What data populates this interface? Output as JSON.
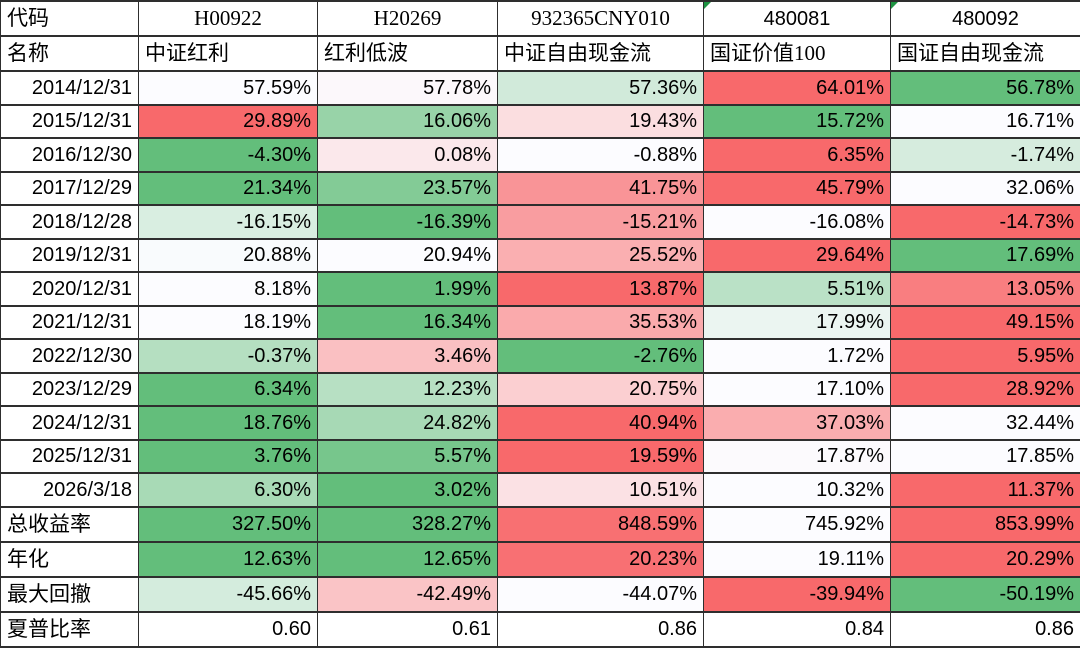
{
  "colors": {
    "border": "#2e2e2e",
    "flag_green": "#1E9442",
    "text": "#000000",
    "background": "#FFFFFF"
  },
  "chart_data": {
    "type": "table",
    "corner": {
      "code_label": "代码",
      "name_label": "名称"
    },
    "column_codes": [
      "H00922",
      "H20269",
      "932365CNY010",
      "480081",
      "480092"
    ],
    "column_names": [
      "中证红利",
      "红利低波",
      "中证自由现金流",
      "国证价值100",
      "国证自由现金流"
    ],
    "code_error_flags": [
      false,
      false,
      false,
      true,
      true
    ],
    "color_scale": {
      "min_color": "#63BE7B",
      "mid_color": "#FCFCFF",
      "max_color": "#F8696B",
      "midpoint": "row median",
      "note": "per-row 3-color scale: lowest=green, median=white, highest=red"
    },
    "rows": [
      {
        "label": "2014/12/31",
        "label_type": "date",
        "format": "percent",
        "color_scale": true,
        "values": [
          57.59,
          57.78,
          57.36,
          64.01,
          56.78
        ]
      },
      {
        "label": "2015/12/31",
        "label_type": "date",
        "format": "percent",
        "color_scale": true,
        "values": [
          29.89,
          16.06,
          19.43,
          15.72,
          16.71
        ]
      },
      {
        "label": "2016/12/30",
        "label_type": "date",
        "format": "percent",
        "color_scale": true,
        "values": [
          -4.3,
          0.08,
          -0.88,
          6.35,
          -1.74
        ]
      },
      {
        "label": "2017/12/29",
        "label_type": "date",
        "format": "percent",
        "color_scale": true,
        "values": [
          21.34,
          23.57,
          41.75,
          45.79,
          32.06
        ]
      },
      {
        "label": "2018/12/28",
        "label_type": "date",
        "format": "percent",
        "color_scale": true,
        "values": [
          -16.15,
          -16.39,
          -15.21,
          -16.08,
          -14.73
        ]
      },
      {
        "label": "2019/12/31",
        "label_type": "date",
        "format": "percent",
        "color_scale": true,
        "values": [
          20.88,
          20.94,
          25.52,
          29.64,
          17.69
        ]
      },
      {
        "label": "2020/12/31",
        "label_type": "date",
        "format": "percent",
        "color_scale": true,
        "values": [
          8.18,
          1.99,
          13.87,
          5.51,
          13.05
        ]
      },
      {
        "label": "2021/12/31",
        "label_type": "date",
        "format": "percent",
        "color_scale": true,
        "values": [
          18.19,
          16.34,
          35.53,
          17.99,
          49.15
        ]
      },
      {
        "label": "2022/12/30",
        "label_type": "date",
        "format": "percent",
        "color_scale": true,
        "values": [
          -0.37,
          3.46,
          -2.76,
          1.72,
          5.95
        ]
      },
      {
        "label": "2023/12/29",
        "label_type": "date",
        "format": "percent",
        "color_scale": true,
        "values": [
          6.34,
          12.23,
          20.75,
          17.1,
          28.92
        ]
      },
      {
        "label": "2024/12/31",
        "label_type": "date",
        "format": "percent",
        "color_scale": true,
        "values": [
          18.76,
          24.82,
          40.94,
          37.03,
          32.44
        ]
      },
      {
        "label": "2025/12/31",
        "label_type": "date",
        "format": "percent",
        "color_scale": true,
        "values": [
          3.76,
          5.57,
          19.59,
          17.87,
          17.85
        ]
      },
      {
        "label": "2026/3/18",
        "label_type": "date",
        "format": "percent",
        "color_scale": true,
        "values": [
          6.3,
          3.02,
          10.51,
          10.32,
          11.37
        ]
      },
      {
        "label": "总收益率",
        "label_type": "metric",
        "format": "percent",
        "color_scale": true,
        "values": [
          327.5,
          328.27,
          848.59,
          745.92,
          853.99
        ]
      },
      {
        "label": "年化",
        "label_type": "metric",
        "format": "percent",
        "color_scale": true,
        "values": [
          12.63,
          12.65,
          20.23,
          19.11,
          20.29
        ]
      },
      {
        "label": "最大回撤",
        "label_type": "metric",
        "format": "percent",
        "color_scale": true,
        "values": [
          -45.66,
          -42.49,
          -44.07,
          -39.94,
          -50.19
        ]
      },
      {
        "label": "夏普比率",
        "label_type": "metric",
        "format": "number",
        "color_scale": false,
        "values": [
          0.6,
          0.61,
          0.86,
          0.84,
          0.86
        ]
      }
    ]
  }
}
